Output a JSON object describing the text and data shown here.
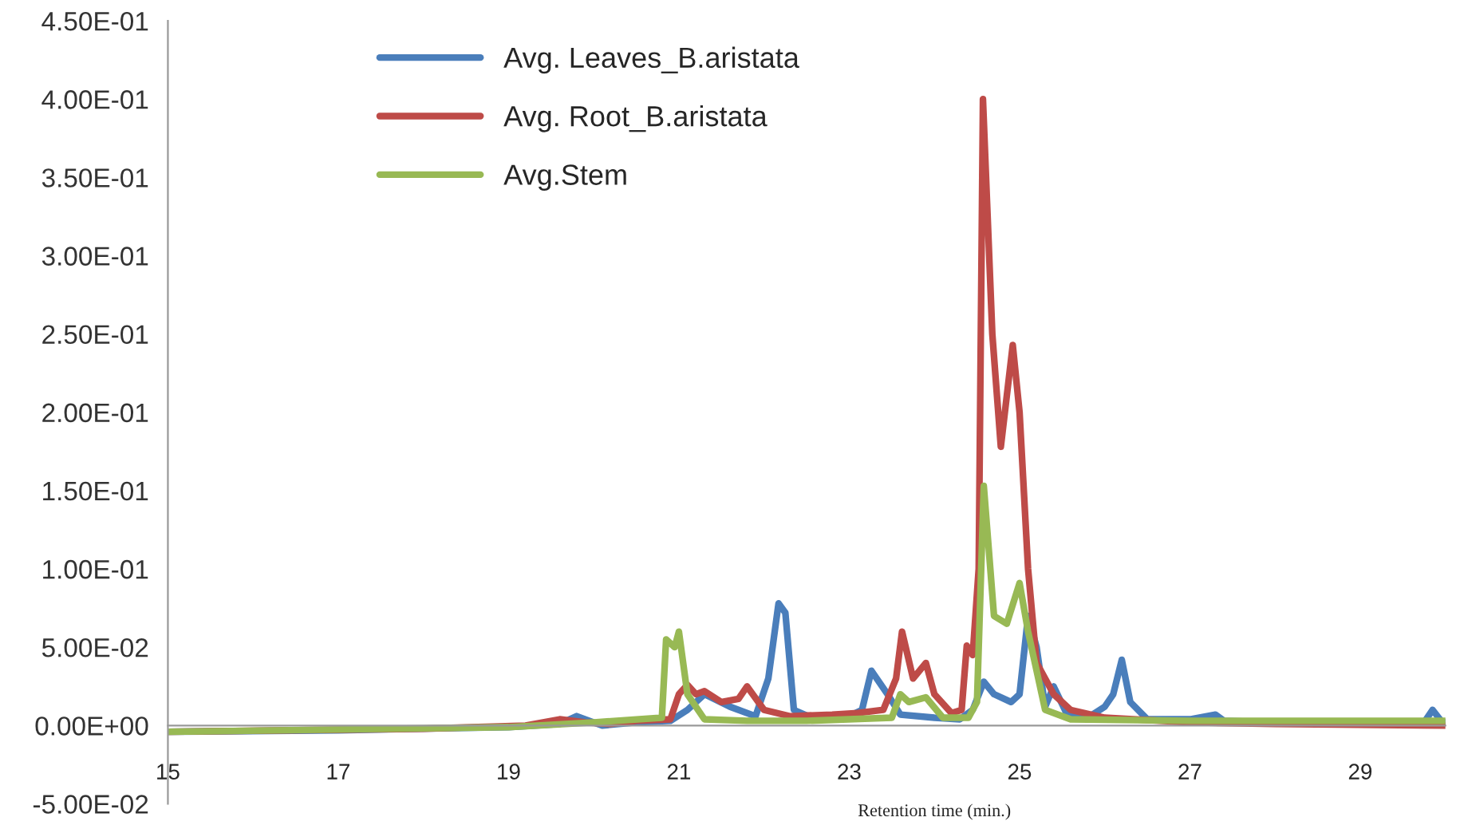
{
  "chart_data": {
    "type": "line",
    "xlabel": "Retention time (min.)",
    "xlim": [
      15,
      30
    ],
    "xticks": [
      15,
      17,
      19,
      21,
      23,
      25,
      27,
      29
    ],
    "ylim": [
      -0.05,
      0.45
    ],
    "yticks": [
      {
        "value": -0.05,
        "label": "-5.00E-02"
      },
      {
        "value": 0,
        "label": "0.00E+00"
      },
      {
        "value": 0.05,
        "label": "5.00E-02"
      },
      {
        "value": 0.1,
        "label": "1.00E-01"
      },
      {
        "value": 0.15,
        "label": "1.50E-01"
      },
      {
        "value": 0.2,
        "label": "2.00E-01"
      },
      {
        "value": 0.25,
        "label": "2.50E-01"
      },
      {
        "value": 0.3,
        "label": "3.00E-01"
      },
      {
        "value": 0.35,
        "label": "3.50E-01"
      },
      {
        "value": 0.4,
        "label": "4.00E-01"
      },
      {
        "value": 0.45,
        "label": "4.50E-01"
      }
    ],
    "grid": false,
    "legend": "top",
    "marker": "none",
    "line_style": "solid",
    "series": [
      {
        "name": "Avg. Leaves_B.aristata",
        "color": "#4a7ebb",
        "x": [
          15,
          17,
          19,
          19.6,
          19.8,
          20.1,
          20.5,
          20.9,
          21.1,
          21.3,
          21.6,
          21.9,
          22.05,
          22.17,
          22.25,
          22.35,
          22.6,
          23.0,
          23.15,
          23.26,
          23.45,
          23.6,
          24.0,
          24.3,
          24.45,
          24.58,
          24.7,
          24.9,
          25.0,
          25.1,
          25.2,
          25.3,
          25.4,
          25.55,
          25.8,
          26.0,
          26.1,
          26.2,
          26.3,
          26.5,
          27.0,
          27.3,
          27.4,
          28,
          29,
          29.75,
          29.85,
          29.95,
          30
        ],
        "values": [
          -0.004,
          -0.003,
          -0.001,
          0.001,
          0.006,
          0.0,
          0.002,
          0.003,
          0.01,
          0.02,
          0.012,
          0.006,
          0.03,
          0.078,
          0.072,
          0.01,
          0.004,
          0.006,
          0.01,
          0.035,
          0.02,
          0.007,
          0.005,
          0.004,
          0.01,
          0.028,
          0.02,
          0.015,
          0.02,
          0.07,
          0.05,
          0.012,
          0.025,
          0.008,
          0.005,
          0.012,
          0.02,
          0.042,
          0.015,
          0.004,
          0.004,
          0.007,
          0.003,
          0.002,
          0.002,
          0.002,
          0.01,
          0.003,
          0.002
        ]
      },
      {
        "name": "Avg. Root_B.aristata",
        "color": "#be4b48",
        "x": [
          15,
          18,
          19.2,
          19.6,
          19.9,
          20.2,
          20.5,
          20.9,
          21.0,
          21.1,
          21.2,
          21.3,
          21.5,
          21.7,
          21.8,
          22.0,
          22.3,
          22.8,
          23.1,
          23.4,
          23.55,
          23.62,
          23.75,
          23.9,
          24.0,
          24.2,
          24.32,
          24.38,
          24.45,
          24.52,
          24.57,
          24.68,
          24.78,
          24.92,
          25.0,
          25.1,
          25.2,
          25.4,
          25.6,
          26,
          27,
          28,
          30
        ],
        "values": [
          -0.004,
          -0.002,
          0.0,
          0.004,
          0.002,
          0.001,
          0.003,
          0.004,
          0.02,
          0.026,
          0.02,
          0.022,
          0.015,
          0.017,
          0.025,
          0.01,
          0.006,
          0.007,
          0.008,
          0.01,
          0.03,
          0.06,
          0.03,
          0.04,
          0.02,
          0.008,
          0.01,
          0.051,
          0.045,
          0.1,
          0.4,
          0.25,
          0.178,
          0.243,
          0.2,
          0.1,
          0.04,
          0.02,
          0.01,
          0.005,
          0.002,
          0.001,
          0.0
        ]
      },
      {
        "name": "Avg.Stem",
        "color": "#98b954",
        "x": [
          15,
          19,
          20,
          20.8,
          20.85,
          20.95,
          21.0,
          21.1,
          21.3,
          21.8,
          22.5,
          23.5,
          23.6,
          23.7,
          23.9,
          24.1,
          24.4,
          24.5,
          24.58,
          24.7,
          24.85,
          25.0,
          25.1,
          25.3,
          25.6,
          27,
          30
        ],
        "values": [
          -0.004,
          -0.001,
          0.002,
          0.005,
          0.055,
          0.05,
          0.06,
          0.02,
          0.004,
          0.003,
          0.003,
          0.005,
          0.02,
          0.015,
          0.018,
          0.005,
          0.005,
          0.015,
          0.153,
          0.07,
          0.065,
          0.091,
          0.06,
          0.01,
          0.004,
          0.003,
          0.003
        ]
      }
    ]
  }
}
